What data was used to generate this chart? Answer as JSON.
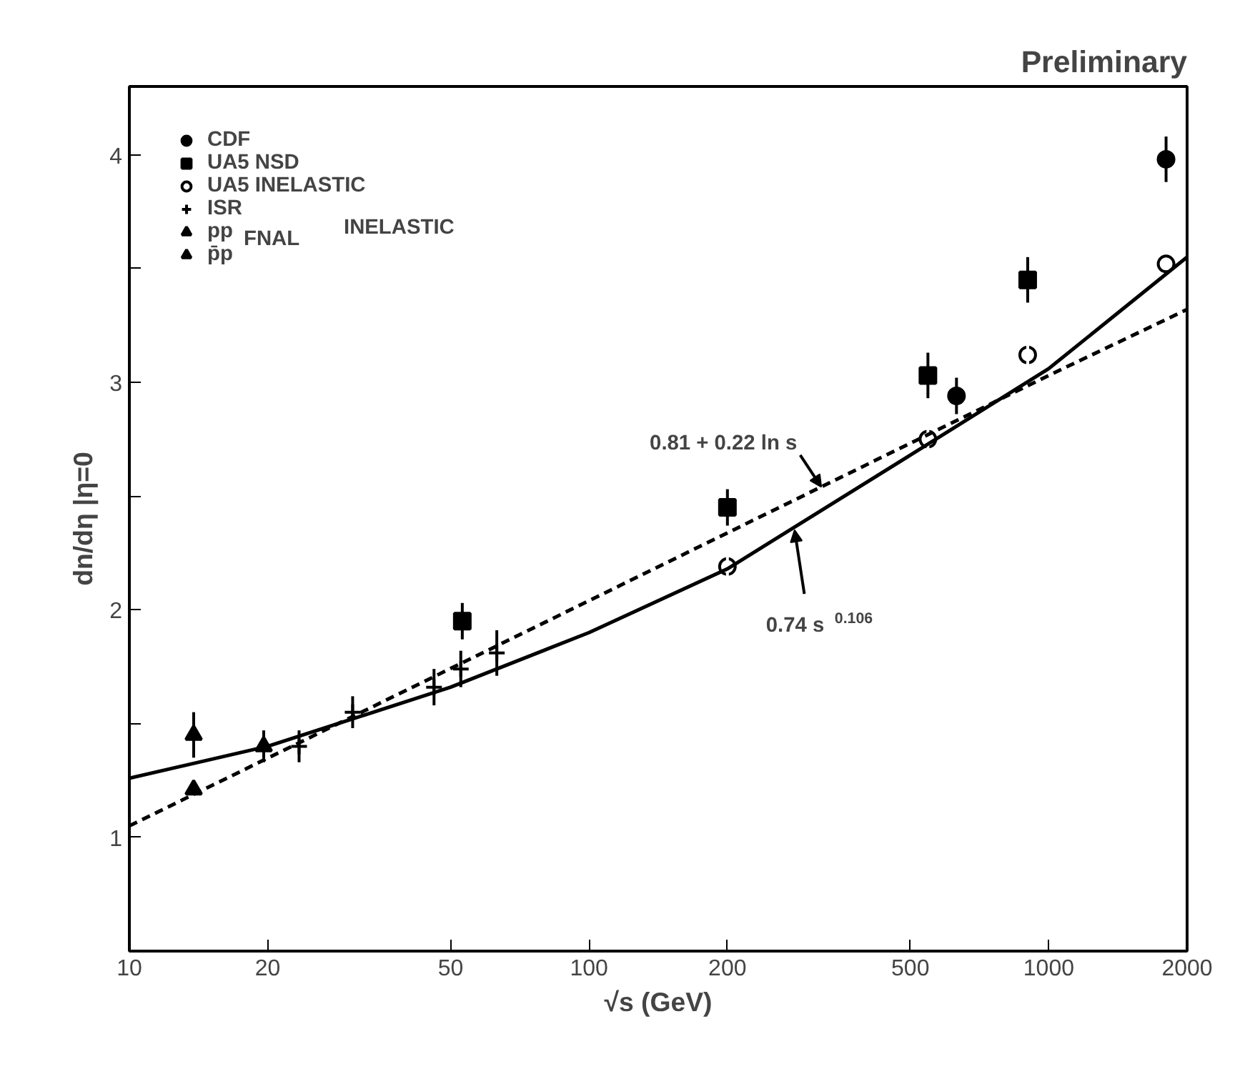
{
  "chart_data": {
    "type": "scatter",
    "title": "Preliminary",
    "xlabel": "√s (GeV)",
    "ylabel": "dn/dη |η=0",
    "log": "x",
    "grid": false,
    "legend": "top left",
    "xlim": [
      10,
      2000
    ],
    "xticks": [
      10,
      20,
      50,
      100,
      200,
      500,
      1000,
      2000
    ],
    "ylim": [
      0.5,
      4.3
    ],
    "yticks": [
      1,
      {
        "value": 1.5,
        "label": null
      },
      2,
      {
        "value": 2.5,
        "label": null
      },
      3,
      {
        "value": 3.5,
        "label": null
      },
      4
    ],
    "series": [
      {
        "name": "CDF",
        "marker": "circle",
        "color": "#000000",
        "x": [
          630,
          1800
        ],
        "values": [
          2.94,
          3.98
        ],
        "errors": [
          0.08,
          0.1
        ]
      },
      {
        "name": "UA5 NSD",
        "marker": "square",
        "color": "#000000",
        "x": [
          53,
          200,
          546,
          900
        ],
        "values": [
          1.95,
          2.45,
          3.03,
          3.45
        ],
        "errors": [
          0.08,
          0.08,
          0.1,
          0.1
        ]
      },
      {
        "name": "UA5 INELASTIC",
        "marker": "circle",
        "color": "#ffffff",
        "x": [
          200,
          546,
          900,
          1800
        ],
        "values": [
          2.19,
          2.75,
          3.12,
          3.52
        ],
        "errors": [
          0.08,
          0.1,
          0.1,
          null
        ]
      },
      {
        "name": "ISR",
        "marker": "cross",
        "color": "#000000",
        "x": [
          23.4,
          30.6,
          46,
          52.6,
          63
        ],
        "values": [
          1.4,
          1.55,
          1.66,
          1.74,
          1.81
        ],
        "errors": [
          0.07,
          0.07,
          0.08,
          0.08,
          0.1
        ]
      },
      {
        "name": "pp",
        "marker": "triangle",
        "color": "#000000",
        "x": [
          13.8,
          19.6
        ],
        "values": [
          1.21,
          1.4
        ],
        "errors": [
          null,
          0.07
        ]
      },
      {
        "name": "p̄p",
        "marker": "triangle",
        "color": "#000000",
        "x": [
          13.8
        ],
        "values": [
          1.45
        ],
        "errors": [
          0.1
        ]
      },
      {
        "type": "line",
        "line_style": "dashed",
        "color": "#000000",
        "x": [
          10,
          100,
          1000,
          2000
        ],
        "values": [
          1.05,
          2.04,
          3.03,
          3.32
        ]
      },
      {
        "type": "line",
        "line_style": "solid",
        "color": "#000000",
        "x": [
          10,
          20,
          50,
          100,
          200,
          500,
          1000,
          2000
        ],
        "values": [
          1.26,
          1.4,
          1.66,
          1.9,
          2.18,
          2.68,
          3.06,
          3.55
        ]
      }
    ],
    "annotations": [
      "FNAL",
      "INELASTIC",
      {
        "text": "0.81 + 0.22 ln s",
        "x": 320,
        "y": 2.54
      },
      {
        "text": "0.74 s$^{0.106}$",
        "x": 280,
        "y": 2.35
      }
    ]
  }
}
